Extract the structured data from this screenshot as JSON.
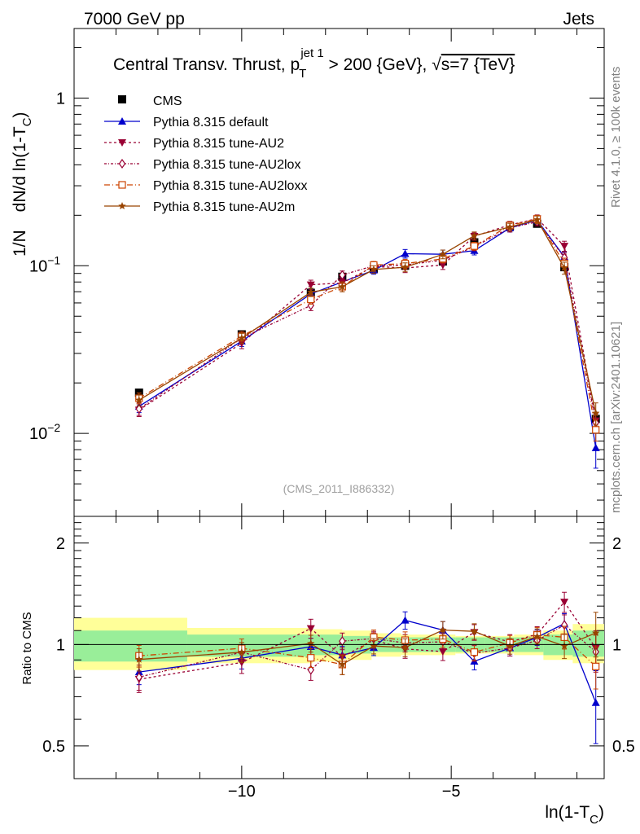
{
  "header": {
    "left": "7000 GeV pp",
    "right": "Jets"
  },
  "side_text": {
    "rivet": "Rivet 4.1.0, ≥ 100k events",
    "mcplots": "mcplots.cern.ch [arXiv:2401.10621]"
  },
  "analysis_id": "(CMS_2011_I886332)",
  "chart_data": {
    "type": "line",
    "title": "Central Transv. Thrust, p_T^{jet 1} > 200 {GeV}, √s=7 {TeV}",
    "title_parts": {
      "prefix": "Central Transv. Thrust, p",
      "sup": "jet 1",
      "sub": "T",
      "middle": " > 200 {GeV}, ",
      "sqrt": "√",
      "s_part": "s=7 {TeV}"
    },
    "xlabel": "ln(1-T_C)",
    "xlabel_parts": {
      "main": "ln(1-T",
      "sub": "C",
      "end": ")"
    },
    "ylabel": "1/N  dN/d ln(1-T_C)",
    "ylabel_parts": {
      "a": "1/N",
      "b": "dN/d ln(1-T",
      "sub": "C",
      "end": ")"
    },
    "ratio_ylabel": "Ratio to CMS",
    "xlim": [
      -14.0,
      -1.35
    ],
    "ylim": [
      0.0032,
      2.6
    ],
    "yscale": "log",
    "ratio_ylim": [
      0.4,
      2.4
    ],
    "main_ticks": [
      {
        "value": 0.01,
        "base": "10",
        "exp": "−2"
      },
      {
        "value": 0.1,
        "base": "10",
        "exp": "−1"
      },
      {
        "value": 1,
        "base": "1",
        "exp": ""
      }
    ],
    "x_ticks": [
      {
        "value": -10,
        "label": "−10"
      },
      {
        "value": -5,
        "label": "−5"
      }
    ],
    "ratio_ticks": [
      {
        "value": 0.5,
        "label": "0.5"
      },
      {
        "value": 1,
        "label": "1"
      },
      {
        "value": 2,
        "label": "2"
      }
    ],
    "x": [
      -12.45,
      -10.0,
      -8.35,
      -7.6,
      -6.85,
      -6.1,
      -5.2,
      -4.45,
      -3.6,
      -2.95,
      -2.3,
      -1.55
    ],
    "reference": {
      "name": "CMS",
      "values": [
        0.0175,
        0.039,
        0.069,
        0.086,
        0.096,
        0.1,
        0.106,
        0.138,
        0.172,
        0.178,
        0.098,
        0.0122
      ],
      "errors": [
        0.0008,
        0.0015,
        0.003,
        0.004,
        0.004,
        0.004,
        0.005,
        0.006,
        0.007,
        0.007,
        0.005,
        0.001
      ]
    },
    "bands": [
      {
        "x": [
          -14.0,
          -11.3,
          -8.3,
          -7.6,
          -6.9,
          -6.2,
          -5.5,
          -4.9,
          -4.2,
          -3.5,
          -2.8,
          -2.1,
          -1.35
        ],
        "green": [
          [
            0.89,
            1.1
          ],
          [
            0.92,
            1.07
          ],
          [
            0.93,
            1.07
          ],
          [
            0.94,
            1.06
          ],
          [
            0.95,
            1.05
          ],
          [
            0.95,
            1.05
          ],
          [
            0.95,
            1.05
          ],
          [
            0.95,
            1.05
          ],
          [
            0.95,
            1.05
          ],
          [
            0.95,
            1.05
          ],
          [
            0.93,
            1.07
          ],
          [
            0.92,
            1.1
          ]
        ],
        "yellow": [
          [
            0.84,
            1.2
          ],
          [
            0.88,
            1.12
          ],
          [
            0.89,
            1.11
          ],
          [
            0.9,
            1.1
          ],
          [
            0.92,
            1.08
          ],
          [
            0.93,
            1.07
          ],
          [
            0.93,
            1.07
          ],
          [
            0.94,
            1.06
          ],
          [
            0.94,
            1.06
          ],
          [
            0.93,
            1.07
          ],
          [
            0.9,
            1.1
          ],
          [
            0.88,
            1.15
          ]
        ]
      }
    ],
    "series": [
      {
        "name": "Pythia 8.315 default",
        "color": "#0000cc",
        "dash": "",
        "marker": "triangle-up",
        "values": [
          0.0145,
          0.0355,
          0.068,
          0.08,
          0.094,
          0.118,
          0.117,
          0.123,
          0.168,
          0.187,
          0.113,
          0.0082
        ],
        "errors": [
          0.0012,
          0.0025,
          0.004,
          0.005,
          0.005,
          0.007,
          0.007,
          0.007,
          0.009,
          0.01,
          0.008,
          0.002
        ]
      },
      {
        "name": "Pythia 8.315 tune-AU2",
        "color": "#990033",
        "dash": "3,3",
        "marker": "triangle-down",
        "values": [
          0.0138,
          0.0345,
          0.077,
          0.079,
          0.099,
          0.097,
          0.101,
          0.15,
          0.175,
          0.191,
          0.131,
          0.0119
        ],
        "errors": [
          0.0012,
          0.0025,
          0.005,
          0.005,
          0.005,
          0.006,
          0.006,
          0.008,
          0.009,
          0.01,
          0.009,
          0.0015
        ]
      },
      {
        "name": "Pythia 8.315 tune-AU2lox",
        "color": "#990033",
        "dash": "3,2,1,2",
        "marker": "diamond-open",
        "values": [
          0.014,
          0.037,
          0.058,
          0.088,
          0.1,
          0.101,
          0.108,
          0.13,
          0.168,
          0.183,
          0.112,
          0.0116
        ],
        "errors": [
          0.0012,
          0.0025,
          0.004,
          0.005,
          0.005,
          0.006,
          0.006,
          0.007,
          0.009,
          0.01,
          0.008,
          0.0015
        ]
      },
      {
        "name": "Pythia 8.315 tune-AU2loxx",
        "color": "#cc4400",
        "dash": "7,3,1,3",
        "marker": "square-open",
        "values": [
          0.0162,
          0.038,
          0.063,
          0.075,
          0.101,
          0.103,
          0.11,
          0.131,
          0.174,
          0.19,
          0.103,
          0.0105
        ],
        "errors": [
          0.0012,
          0.0025,
          0.004,
          0.005,
          0.005,
          0.006,
          0.006,
          0.007,
          0.009,
          0.01,
          0.008,
          0.0015
        ]
      },
      {
        "name": "Pythia 8.315 tune-AU2m",
        "color": "#994400",
        "dash": "",
        "marker": "star",
        "values": [
          0.0158,
          0.037,
          0.0695,
          0.075,
          0.095,
          0.098,
          0.117,
          0.151,
          0.17,
          0.188,
          0.097,
          0.0132
        ],
        "errors": [
          0.0012,
          0.0025,
          0.004,
          0.005,
          0.005,
          0.006,
          0.007,
          0.008,
          0.009,
          0.01,
          0.008,
          0.002
        ]
      }
    ]
  }
}
